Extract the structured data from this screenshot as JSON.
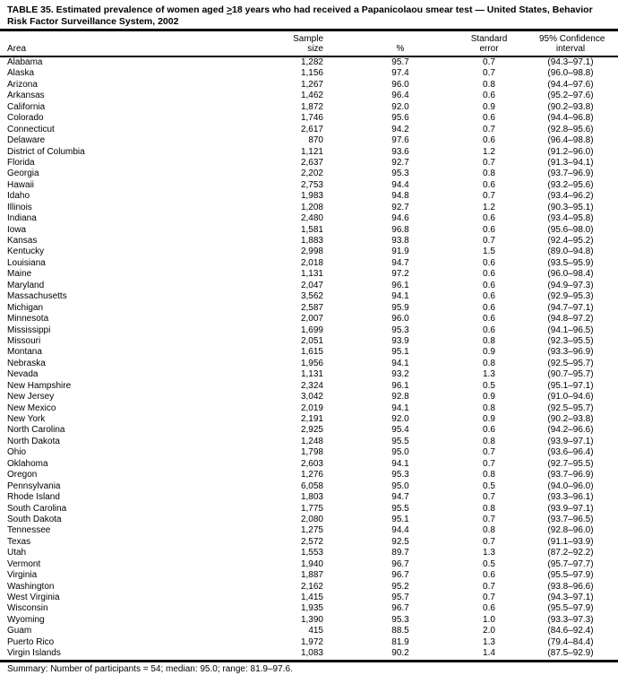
{
  "title": {
    "part1": "TABLE 35. Estimated prevalence of women aged ",
    "geq": ">",
    "part2": "18 years who had received a Papanicolaou smear test — United States, Behavior",
    "line2": "Risk Factor Surveillance System, 2002"
  },
  "columns": {
    "area": "Area",
    "sample_line1": "Sample",
    "sample_line2": "size",
    "percent": "%",
    "se_line1": "Standard",
    "se_line2": "error",
    "ci_line1": "95% Confidence",
    "ci_line2": "interval"
  },
  "rows": [
    {
      "area": "Alabama",
      "sample": "1,282",
      "percent": "95.7",
      "se": "0.7",
      "ci": "(94.3–97.1)"
    },
    {
      "area": "Alaska",
      "sample": "1,156",
      "percent": "97.4",
      "se": "0.7",
      "ci": "(96.0–98.8)"
    },
    {
      "area": "Arizona",
      "sample": "1,267",
      "percent": "96.0",
      "se": "0.8",
      "ci": "(94.4–97.6)"
    },
    {
      "area": "Arkansas",
      "sample": "1,462",
      "percent": "96.4",
      "se": "0.6",
      "ci": "(95.2–97.6)"
    },
    {
      "area": "California",
      "sample": "1,872",
      "percent": "92.0",
      "se": "0.9",
      "ci": "(90.2–93.8)"
    },
    {
      "area": "Colorado",
      "sample": "1,746",
      "percent": "95.6",
      "se": "0.6",
      "ci": "(94.4–96.8)"
    },
    {
      "area": "Connecticut",
      "sample": "2,617",
      "percent": "94.2",
      "se": "0.7",
      "ci": "(92.8–95.6)"
    },
    {
      "area": "Delaware",
      "sample": "870",
      "percent": "97.6",
      "se": "0.6",
      "ci": "(96.4–98.8)"
    },
    {
      "area": "District of Columbia",
      "sample": "1,121",
      "percent": "93.6",
      "se": "1.2",
      "ci": "(91.2–96.0)"
    },
    {
      "area": "Florida",
      "sample": "2,637",
      "percent": "92.7",
      "se": "0.7",
      "ci": "(91.3–94.1)"
    },
    {
      "area": "Georgia",
      "sample": "2,202",
      "percent": "95.3",
      "se": "0.8",
      "ci": "(93.7–96.9)"
    },
    {
      "area": "Hawaii",
      "sample": "2,753",
      "percent": "94.4",
      "se": "0.6",
      "ci": "(93.2–95.6)"
    },
    {
      "area": "Idaho",
      "sample": "1,983",
      "percent": "94.8",
      "se": "0.7",
      "ci": "(93.4–96.2)"
    },
    {
      "area": "Illinois",
      "sample": "1,208",
      "percent": "92.7",
      "se": "1.2",
      "ci": "(90.3–95.1)"
    },
    {
      "area": "Indiana",
      "sample": "2,480",
      "percent": "94.6",
      "se": "0.6",
      "ci": "(93.4–95.8)"
    },
    {
      "area": "Iowa",
      "sample": "1,581",
      "percent": "96.8",
      "se": "0.6",
      "ci": "(95.6–98.0)"
    },
    {
      "area": "Kansas",
      "sample": "1,883",
      "percent": "93.8",
      "se": "0.7",
      "ci": "(92.4–95.2)"
    },
    {
      "area": "Kentucky",
      "sample": "2,998",
      "percent": "91.9",
      "se": "1.5",
      "ci": "(89.0–94.8)"
    },
    {
      "area": "Louisiana",
      "sample": "2,018",
      "percent": "94.7",
      "se": "0.6",
      "ci": "(93.5–95.9)"
    },
    {
      "area": "Maine",
      "sample": "1,131",
      "percent": "97.2",
      "se": "0.6",
      "ci": "(96.0–98.4)"
    },
    {
      "area": "Maryland",
      "sample": "2,047",
      "percent": "96.1",
      "se": "0.6",
      "ci": "(94.9–97.3)"
    },
    {
      "area": "Massachusetts",
      "sample": "3,562",
      "percent": "94.1",
      "se": "0.6",
      "ci": "(92.9–95.3)"
    },
    {
      "area": "Michigan",
      "sample": "2,587",
      "percent": "95.9",
      "se": "0.6",
      "ci": "(94.7–97.1)"
    },
    {
      "area": "Minnesota",
      "sample": "2,007",
      "percent": "96.0",
      "se": "0.6",
      "ci": "(94.8–97.2)"
    },
    {
      "area": "Mississippi",
      "sample": "1,699",
      "percent": "95.3",
      "se": "0.6",
      "ci": "(94.1–96.5)"
    },
    {
      "area": "Missouri",
      "sample": "2,051",
      "percent": "93.9",
      "se": "0.8",
      "ci": "(92.3–95.5)"
    },
    {
      "area": "Montana",
      "sample": "1,615",
      "percent": "95.1",
      "se": "0.9",
      "ci": "(93.3–96.9)"
    },
    {
      "area": "Nebraska",
      "sample": "1,956",
      "percent": "94.1",
      "se": "0.8",
      "ci": "(92.5–95.7)"
    },
    {
      "area": "Nevada",
      "sample": "1,131",
      "percent": "93.2",
      "se": "1.3",
      "ci": "(90.7–95.7)"
    },
    {
      "area": "New Hampshire",
      "sample": "2,324",
      "percent": "96.1",
      "se": "0.5",
      "ci": "(95.1–97.1)"
    },
    {
      "area": "New Jersey",
      "sample": "3,042",
      "percent": "92.8",
      "se": "0.9",
      "ci": "(91.0–94.6)"
    },
    {
      "area": "New Mexico",
      "sample": "2,019",
      "percent": "94.1",
      "se": "0.8",
      "ci": "(92.5–95.7)"
    },
    {
      "area": "New York",
      "sample": "2,191",
      "percent": "92.0",
      "se": "0.9",
      "ci": "(90.2–93.8)"
    },
    {
      "area": "North Carolina",
      "sample": "2,925",
      "percent": "95.4",
      "se": "0.6",
      "ci": "(94.2–96.6)"
    },
    {
      "area": "North Dakota",
      "sample": "1,248",
      "percent": "95.5",
      "se": "0.8",
      "ci": "(93.9–97.1)"
    },
    {
      "area": "Ohio",
      "sample": "1,798",
      "percent": "95.0",
      "se": "0.7",
      "ci": "(93.6–96.4)"
    },
    {
      "area": "Oklahoma",
      "sample": "2,603",
      "percent": "94.1",
      "se": "0.7",
      "ci": "(92.7–95.5)"
    },
    {
      "area": "Oregon",
      "sample": "1,276",
      "percent": "95.3",
      "se": "0.8",
      "ci": "(93.7–96.9)"
    },
    {
      "area": "Pennsylvania",
      "sample": "6,058",
      "percent": "95.0",
      "se": "0.5",
      "ci": "(94.0–96.0)"
    },
    {
      "area": "Rhode Island",
      "sample": "1,803",
      "percent": "94.7",
      "se": "0.7",
      "ci": "(93.3–96.1)"
    },
    {
      "area": "South Carolina",
      "sample": "1,775",
      "percent": "95.5",
      "se": "0.8",
      "ci": "(93.9–97.1)"
    },
    {
      "area": "South Dakota",
      "sample": "2,080",
      "percent": "95.1",
      "se": "0.7",
      "ci": "(93.7–96.5)"
    },
    {
      "area": "Tennessee",
      "sample": "1,275",
      "percent": "94.4",
      "se": "0.8",
      "ci": "(92.8–96.0)"
    },
    {
      "area": "Texas",
      "sample": "2,572",
      "percent": "92.5",
      "se": "0.7",
      "ci": "(91.1–93.9)"
    },
    {
      "area": "Utah",
      "sample": "1,553",
      "percent": "89.7",
      "se": "1.3",
      "ci": "(87.2–92.2)"
    },
    {
      "area": "Vermont",
      "sample": "1,940",
      "percent": "96.7",
      "se": "0.5",
      "ci": "(95.7–97.7)"
    },
    {
      "area": "Virginia",
      "sample": "1,887",
      "percent": "96.7",
      "se": "0.6",
      "ci": "(95.5–97.9)"
    },
    {
      "area": "Washington",
      "sample": "2,162",
      "percent": "95.2",
      "se": "0.7",
      "ci": "(93.8–96.6)"
    },
    {
      "area": "West Virginia",
      "sample": "1,415",
      "percent": "95.7",
      "se": "0.7",
      "ci": "(94.3–97.1)"
    },
    {
      "area": "Wisconsin",
      "sample": "1,935",
      "percent": "96.7",
      "se": "0.6",
      "ci": "(95.5–97.9)"
    },
    {
      "area": "Wyoming",
      "sample": "1,390",
      "percent": "95.3",
      "se": "1.0",
      "ci": "(93.3–97.3)"
    },
    {
      "area": "Guam",
      "sample": "415",
      "percent": "88.5",
      "se": "2.0",
      "ci": "(84.6–92.4)"
    },
    {
      "area": "Puerto Rico",
      "sample": "1,972",
      "percent": "81.9",
      "se": "1.3",
      "ci": "(79.4–84.4)"
    },
    {
      "area": "Virgin Islands",
      "sample": "1,083",
      "percent": "90.2",
      "se": "1.4",
      "ci": "(87.5–92.9)"
    }
  ],
  "summary": "Summary: Number of participants = 54; median: 95.0; range: 81.9–97.6.",
  "colors": {
    "text": "#000000",
    "background": "#ffffff",
    "rule": "#000000"
  }
}
